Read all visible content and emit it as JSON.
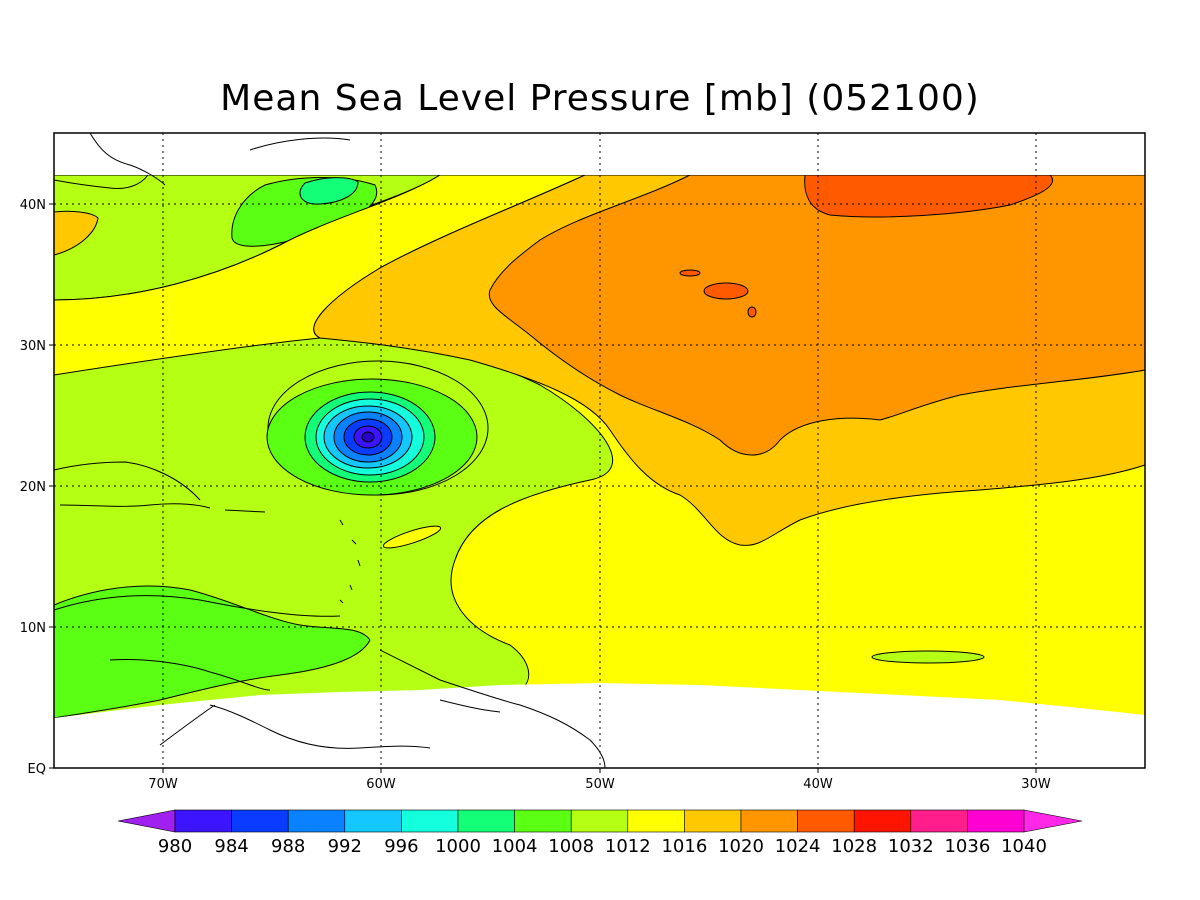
{
  "title": "Mean Sea Level Pressure [mb] (052100)",
  "map": {
    "lon_range": [
      -75,
      -25
    ],
    "lat_range": [
      0,
      45
    ],
    "grid": "dotted",
    "x_ticks": [
      "70W",
      "60W",
      "50W",
      "40W",
      "30W"
    ],
    "y_ticks": [
      "EQ",
      "10N",
      "20N",
      "30N",
      "40N"
    ]
  },
  "features": {
    "low_center": {
      "lon": -60.4,
      "lat": 23.5,
      "min_pressure": 980
    },
    "high_center": {
      "lon": -37,
      "lat": 40.5,
      "max_pressure": 1028
    }
  },
  "colorbar": {
    "levels": [
      "980",
      "984",
      "988",
      "992",
      "996",
      "1000",
      "1004",
      "1008",
      "1012",
      "1016",
      "1020",
      "1024",
      "1028",
      "1032",
      "1036",
      "1040"
    ],
    "colors": [
      "#a020f0",
      "#3c14ff",
      "#0a3cff",
      "#0a82ff",
      "#14c8ff",
      "#14ffdc",
      "#14ff78",
      "#5aff14",
      "#b4ff14",
      "#ffff00",
      "#ffc800",
      "#ff9600",
      "#ff5a00",
      "#ff1400",
      "#ff1e8c",
      "#ff00d2",
      "#ff28e6"
    ]
  }
}
